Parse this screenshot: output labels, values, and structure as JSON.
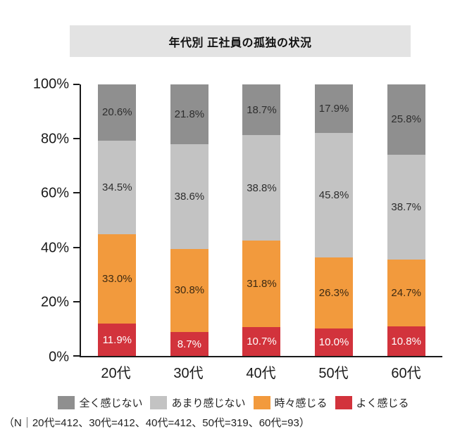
{
  "title": "年代別 正社員の孤独の状況",
  "note": "（N｜20代=412、30代=412、40代=412、50代=319、60代=93）",
  "colors": {
    "title_background": "#E3E3E3",
    "axis": "#1a1a1a",
    "background": "#ffffff"
  },
  "chart_data": {
    "type": "bar",
    "stacked": true,
    "orientation": "vertical",
    "title": "年代別 正社員の孤独の状況",
    "categories": [
      "20代",
      "30代",
      "40代",
      "50代",
      "60代"
    ],
    "series": [
      {
        "name": "全く感じない",
        "color": "#8F8F8F",
        "label_color": "#2e2e2e",
        "values": [
          20.6,
          21.8,
          18.7,
          17.9,
          25.8
        ]
      },
      {
        "name": "あまり感じない",
        "color": "#C3C3C3",
        "label_color": "#2e2e2e",
        "values": [
          34.5,
          38.6,
          38.8,
          45.8,
          38.7
        ]
      },
      {
        "name": "時々感じる",
        "color": "#F29A3D",
        "label_color": "#3d2a12",
        "values": [
          33.0,
          30.8,
          31.8,
          26.3,
          24.7
        ]
      },
      {
        "name": "よく感じる",
        "color": "#D2333C",
        "label_color": "#ffffff",
        "values": [
          11.9,
          8.7,
          10.7,
          10.0,
          10.8
        ]
      }
    ],
    "value_label_format": "{v}%",
    "y_ticks": [
      "100%",
      "80%",
      "60%",
      "40%",
      "20%",
      "0%"
    ],
    "y_tick_values": [
      100,
      80,
      60,
      40,
      20,
      0
    ],
    "ylim": [
      0,
      100
    ],
    "xlabel": "",
    "ylabel": "",
    "grid": false,
    "legend_position": "bottom",
    "footnote": "（N｜20代=412、30代=412、40代=412、50代=319、60代=93）"
  }
}
